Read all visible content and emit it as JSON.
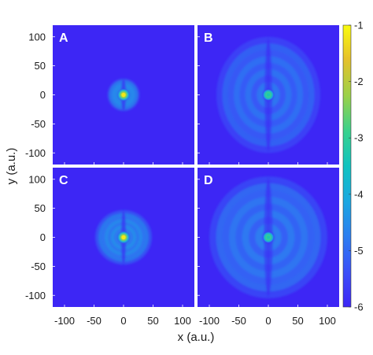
{
  "chart_data": {
    "type": "heatmap",
    "xlabel": "x (a.u.)",
    "ylabel": "y (a.u.)",
    "xlim": [
      -120,
      120
    ],
    "ylim": [
      -120,
      120
    ],
    "xticks": [
      -100,
      -50,
      0,
      50,
      100
    ],
    "yticks": [
      100,
      50,
      0,
      -50,
      -100
    ],
    "xtick_labels": [
      "-100",
      "-50",
      "0",
      "50",
      "100"
    ],
    "ytick_labels": [
      "100",
      "50",
      "0",
      "-50",
      "-100"
    ],
    "colorbar": {
      "range": [
        -6,
        -1
      ],
      "ticks": [
        -1,
        -2,
        -3,
        -4,
        -5,
        -6
      ],
      "tick_labels": [
        "-1",
        "-2",
        "-3",
        "-4",
        "-5",
        "-6"
      ],
      "colormap": "parula",
      "background_color": "#3d26f5"
    },
    "panels": [
      {
        "label": "A",
        "center_value": -1.2,
        "lobe_extent_x": 27,
        "lobe_extent_y": 28,
        "lobe_level": -4.8
      },
      {
        "label": "B",
        "center_value": -3.3,
        "lobe_extent_x": 88,
        "lobe_extent_y": 100,
        "lobe_level": -5.3
      },
      {
        "label": "C",
        "center_value": -1.2,
        "lobe_extent_x": 48,
        "lobe_extent_y": 47,
        "lobe_level": -4.9
      },
      {
        "label": "D",
        "center_value": -3.3,
        "lobe_extent_x": 100,
        "lobe_extent_y": 105,
        "lobe_level": -5.2
      }
    ]
  }
}
